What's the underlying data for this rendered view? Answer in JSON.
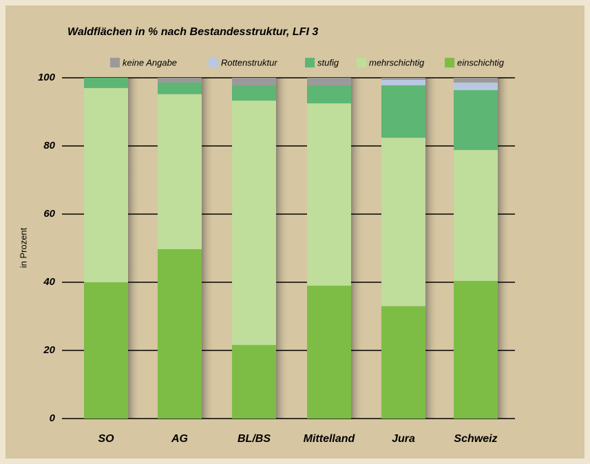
{
  "chart_data": {
    "type": "stacked_bar",
    "title": "Waldflächen in % nach Bestandesstruktur, LFI 3",
    "y_label": "in Prozent",
    "categories": [
      "SO",
      "AG",
      "BL/BS",
      "Mittelland",
      "Jura",
      "Schweiz"
    ],
    "series": [
      {
        "name": "keine Angabe",
        "color": "#9a9a9a",
        "values": [
          0,
          1.4,
          2.2,
          2.2,
          0.6,
          1.4
        ]
      },
      {
        "name": "Rottenstruktur",
        "color": "#b9c8e2",
        "values": [
          0,
          0,
          0,
          0,
          1.6,
          2.2
        ]
      },
      {
        "name": "stufig",
        "color": "#5db673",
        "values": [
          3,
          3.4,
          4.5,
          5.3,
          15.4,
          17.6
        ]
      },
      {
        "name": "mehrschichtig",
        "color": "#bfdd9b",
        "values": [
          57,
          45.5,
          71.7,
          53.5,
          49.4,
          38.4
        ]
      },
      {
        "name": "einschichtig",
        "color": "#7dbd45",
        "values": [
          40,
          49.7,
          21.6,
          39,
          33,
          40.4
        ]
      }
    ],
    "ylim": [
      0,
      100
    ],
    "yticks": [
      0,
      20,
      40,
      60,
      80,
      100
    ],
    "grid": true
  }
}
